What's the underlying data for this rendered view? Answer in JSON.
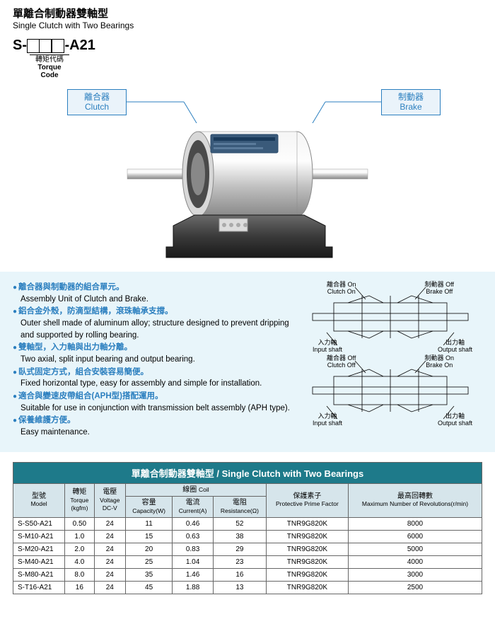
{
  "header": {
    "title_zh": "單離合制動器雙軸型",
    "title_en": "Single Clutch with Two Bearings"
  },
  "model": {
    "prefix": "S-",
    "suffix": "-A21",
    "torque_zh": "轉矩代碼",
    "torque_en": "Torque Code"
  },
  "labels": {
    "clutch_zh": "離合器",
    "clutch_en": "Clutch",
    "brake_zh": "制動器",
    "brake_en": "Brake"
  },
  "features": [
    {
      "zh": "離合器與制動器的組合單元。",
      "en": "Assembly Unit of Clutch and Brake."
    },
    {
      "zh": "鋁合金外殼，防滴型結構，滾珠軸承支撐。",
      "en": "Outer shell made of aluminum alloy; structure designed to prevent dripping and supported by rolling bearing."
    },
    {
      "zh": "雙軸型，入力軸與出力軸分離。",
      "en": "Two axial, split input bearing and output bearing."
    },
    {
      "zh": "臥式固定方式，組合安裝容易簡便。",
      "en": "Fixed horizontal type, easy for assembly and simple for installation."
    },
    {
      "zh": "適合與變速皮帶組合(APH型)搭配運用。",
      "en": "Suitable for use in conjunction with transmission belt assembly (APH type)."
    },
    {
      "zh": "保養維護方便。",
      "en": "Easy maintenance."
    }
  ],
  "diagram": {
    "clutch_on_zh": "離合器 On",
    "clutch_on_en": "Clutch On",
    "brake_off_zh": "制動器 Off",
    "brake_off_en": "Brake Off",
    "clutch_off_zh": "離合器 Off",
    "clutch_off_en": "Clutch Off",
    "brake_on_zh": "制動器 On",
    "brake_on_en": "Brake On",
    "input_zh": "入力軸",
    "input_en": "Input shaft",
    "output_zh": "出力軸",
    "output_en": "Output shaft"
  },
  "table": {
    "title_zh": "單離合制動器雙軸型",
    "title_en": "Single Clutch with Two Bearings",
    "headers": {
      "model_zh": "型號",
      "model_en": "Model",
      "torque_zh": "轉矩",
      "torque_en": "Torque",
      "torque_unit": "(kgfm)",
      "voltage_zh": "電壓",
      "voltage_en": "Voltage",
      "voltage_unit": "DC-V",
      "coil_zh": "線圈",
      "coil_en": "Coil",
      "capacity_zh": "容量",
      "capacity_en": "Capacity(W)",
      "current_zh": "電流",
      "current_en": "Current(A)",
      "resistance_zh": "電阻",
      "resistance_en": "Resistance(Ω)",
      "factor_zh": "保護素子",
      "factor_en": "Protective Prime Factor",
      "rev_zh": "最高回轉數",
      "rev_en": "Maximum Number of Revolutions(r/min)"
    },
    "rows": [
      {
        "model": "S-S50-A21",
        "torque": "0.50",
        "voltage": "24",
        "capacity": "11",
        "current": "0.46",
        "resistance": "52",
        "factor": "TNR9G820K",
        "rev": "8000"
      },
      {
        "model": "S-M10-A21",
        "torque": "1.0",
        "voltage": "24",
        "capacity": "15",
        "current": "0.63",
        "resistance": "38",
        "factor": "TNR9G820K",
        "rev": "6000"
      },
      {
        "model": "S-M20-A21",
        "torque": "2.0",
        "voltage": "24",
        "capacity": "20",
        "current": "0.83",
        "resistance": "29",
        "factor": "TNR9G820K",
        "rev": "5000"
      },
      {
        "model": "S-M40-A21",
        "torque": "4.0",
        "voltage": "24",
        "capacity": "25",
        "current": "1.04",
        "resistance": "23",
        "factor": "TNR9G820K",
        "rev": "4000"
      },
      {
        "model": "S-M80-A21",
        "torque": "8.0",
        "voltage": "24",
        "capacity": "35",
        "current": "1.46",
        "resistance": "16",
        "factor": "TNR9G820K",
        "rev": "3000"
      },
      {
        "model": "S-T16-A21",
        "torque": "16",
        "voltage": "24",
        "capacity": "45",
        "current": "1.88",
        "resistance": "13",
        "factor": "TNR9G820K",
        "rev": "2500"
      }
    ]
  },
  "colors": {
    "accent": "#2b7fbf",
    "table_header_bg": "#1e7a8a",
    "table_sub_bg": "#d6e5eb",
    "info_bg": "#e8f5fa"
  }
}
